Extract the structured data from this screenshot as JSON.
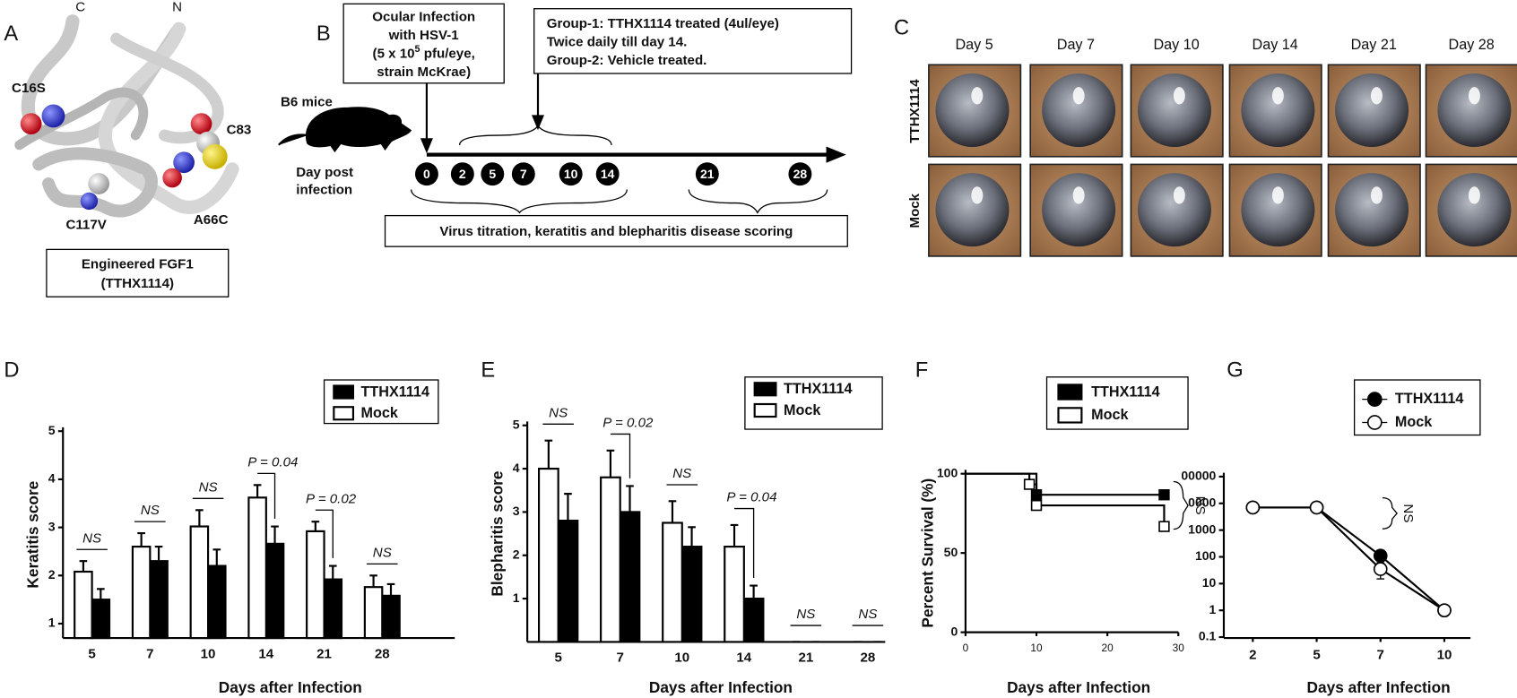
{
  "panel_a": {
    "letter": "A",
    "residues": {
      "c_term": "C",
      "n_term": "N",
      "c16s": "C16S",
      "c83": "C83",
      "a66c": "A66C",
      "c117v": "C117V"
    },
    "caption": [
      "Engineered FGF1",
      "(TTHX1114)"
    ]
  },
  "panel_b": {
    "letter": "B",
    "infection": {
      "line1": "Ocular  Infection",
      "line2": "with HSV-1",
      "line3_pre": "(5 x 10",
      "line3_sup": "5",
      "line3_post": " pfu/eye,",
      "line4": "strain McKrae)"
    },
    "treatment": [
      "Group-1: TTHX1114 treated (4ul/eye)",
      "Twice daily till day 14.",
      "Group-2: Vehicle treated."
    ],
    "mice": "B6 mice",
    "day_label": [
      "Day post",
      "infection"
    ],
    "days": [
      "0",
      "2",
      "5",
      "7",
      "10",
      "14",
      "21",
      "28"
    ],
    "scoring": "Virus titration, keratitis and blepharitis disease scoring"
  },
  "panel_c": {
    "letter": "C",
    "days": [
      "Day 5",
      "Day 7",
      "Day 10",
      "Day 14",
      "Day 21",
      "Day 28"
    ],
    "rows": [
      "TTHX1114",
      "Mock"
    ]
  },
  "chart_data": [
    {
      "panel": "D",
      "type": "bar",
      "ylabel": "Keratitis score",
      "xlabel": "Days after Infection",
      "categories": [
        "5",
        "7",
        "10",
        "14",
        "21",
        "28"
      ],
      "ylim": [
        0.7,
        5
      ],
      "yticks": [
        1,
        2,
        3,
        4,
        5
      ],
      "series": [
        {
          "name": "TTHX1114",
          "color": "#000000",
          "values": [
            1.5,
            2.3,
            2.2,
            2.66,
            1.92,
            1.58
          ],
          "errors": [
            0.22,
            0.3,
            0.34,
            0.36,
            0.28,
            0.24
          ]
        },
        {
          "name": "Mock",
          "color": "#ffffff",
          "values": [
            2.08,
            2.6,
            3.02,
            3.62,
            2.92,
            1.76
          ],
          "errors": [
            0.22,
            0.28,
            0.34,
            0.26,
            0.2,
            0.24
          ]
        }
      ],
      "annotations": [
        {
          "category": 0,
          "text": "NS"
        },
        {
          "category": 1,
          "text": "NS"
        },
        {
          "category": 2,
          "text": "NS"
        },
        {
          "category": 3,
          "text": "P = 0.04"
        },
        {
          "category": 4,
          "text": "P = 0.02"
        },
        {
          "category": 5,
          "text": "NS"
        }
      ]
    },
    {
      "panel": "E",
      "type": "bar",
      "ylabel": "Blepharitis score",
      "xlabel": "Days after Infection",
      "categories": [
        "5",
        "7",
        "10",
        "14",
        "21",
        "28"
      ],
      "ylim": [
        0,
        5
      ],
      "yticks": [
        1,
        2,
        3,
        4,
        5
      ],
      "series": [
        {
          "name": "TTHX1114",
          "color": "#000000",
          "values": [
            2.8,
            3.0,
            2.2,
            1.0,
            0,
            0
          ],
          "errors": [
            0.62,
            0.6,
            0.45,
            0.3,
            0,
            0
          ]
        },
        {
          "name": "Mock",
          "color": "#ffffff",
          "values": [
            4.0,
            3.8,
            2.75,
            2.2,
            0,
            0
          ],
          "errors": [
            0.65,
            0.62,
            0.5,
            0.5,
            0,
            0
          ]
        }
      ],
      "annotations": [
        {
          "category": 0,
          "text": "NS"
        },
        {
          "category": 1,
          "text": "P = 0.02"
        },
        {
          "category": 2,
          "text": "NS"
        },
        {
          "category": 3,
          "text": "P = 0.04"
        },
        {
          "category": 4,
          "text": "NS"
        },
        {
          "category": 5,
          "text": "NS"
        }
      ]
    },
    {
      "panel": "F",
      "type": "step",
      "ylabel": "Percent Survival (%)",
      "xlabel": "Days after Infection",
      "xlim": [
        0,
        30
      ],
      "xticks": [
        0,
        10,
        20,
        30
      ],
      "ylim": [
        0,
        100
      ],
      "yticks": [
        0,
        50,
        100
      ],
      "series": [
        {
          "name": "TTHX1114",
          "color": "#000000",
          "x": [
            0,
            10,
            28
          ],
          "values": [
            100,
            86.7,
            86.7
          ]
        },
        {
          "name": "Mock",
          "color": "#ffffff",
          "x": [
            0,
            9,
            10,
            28
          ],
          "values": [
            100,
            93.3,
            80,
            66.7
          ]
        }
      ],
      "annotations": [
        {
          "text": "NS"
        }
      ]
    },
    {
      "panel": "G",
      "type": "line",
      "xlabel": "Days after Infection",
      "log_y": true,
      "categories": [
        "2",
        "5",
        "7",
        "10"
      ],
      "ylim": [
        0.1,
        100000
      ],
      "yticks": [
        0.1,
        1,
        10,
        100,
        1000,
        {
          "value": 10000,
          "label": "0000"
        },
        {
          "value": 100000,
          "label": "00000"
        }
      ],
      "series": [
        {
          "name": "TTHX1114",
          "color": "#000000",
          "values": [
            7000,
            7000,
            110,
            1
          ],
          "errors": [
            0,
            0,
            50,
            0
          ]
        },
        {
          "name": "Mock",
          "color": "#ffffff",
          "values": [
            7000,
            7000,
            35,
            1
          ],
          "errors": [
            0,
            0,
            20,
            0
          ]
        }
      ],
      "annotations": [
        {
          "category": 2,
          "text": "NS"
        }
      ]
    }
  ]
}
